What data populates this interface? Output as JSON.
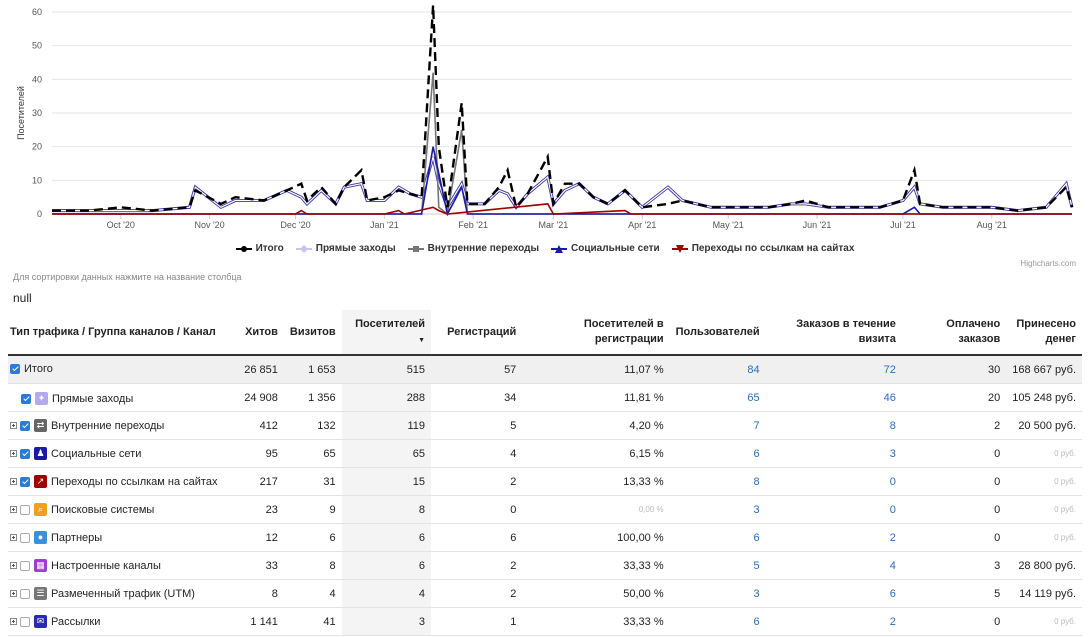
{
  "chart_data": {
    "type": "line",
    "ylabel": "Посетителей",
    "ylim": [
      0,
      60
    ],
    "yticks": [
      0,
      10,
      20,
      30,
      40,
      50,
      60
    ],
    "xlim": [
      "2020-09-07",
      "2021-08-29"
    ],
    "xticks": [
      {
        "label": "Oct '20",
        "date": "2020-10-01"
      },
      {
        "label": "Nov '20",
        "date": "2020-11-01"
      },
      {
        "label": "Dec '20",
        "date": "2020-12-01"
      },
      {
        "label": "Jan '21",
        "date": "2021-01-01"
      },
      {
        "label": "Feb '21",
        "date": "2021-02-01"
      },
      {
        "label": "Mar '21",
        "date": "2021-03-01"
      },
      {
        "label": "Apr '21",
        "date": "2021-04-01"
      },
      {
        "label": "May '21",
        "date": "2021-05-01"
      },
      {
        "label": "Jun '21",
        "date": "2021-06-01"
      },
      {
        "label": "Jul '21",
        "date": "2021-07-01"
      },
      {
        "label": "Aug '21",
        "date": "2021-08-01"
      }
    ],
    "series": [
      {
        "name": "Итого",
        "color": "#000000",
        "dash": true,
        "marker": "circle",
        "points": [
          [
            "2020-09-07",
            1
          ],
          [
            "2020-09-20",
            1
          ],
          [
            "2020-10-01",
            2
          ],
          [
            "2020-10-12",
            1
          ],
          [
            "2020-10-25",
            2
          ],
          [
            "2020-10-27",
            7
          ],
          [
            "2020-11-05",
            3
          ],
          [
            "2020-11-10",
            5
          ],
          [
            "2020-11-20",
            4
          ],
          [
            "2020-11-28",
            7
          ],
          [
            "2020-12-03",
            9
          ],
          [
            "2020-12-05",
            4
          ],
          [
            "2020-12-10",
            8
          ],
          [
            "2020-12-15",
            3
          ],
          [
            "2020-12-18",
            8
          ],
          [
            "2020-12-24",
            13
          ],
          [
            "2020-12-26",
            4
          ],
          [
            "2021-01-01",
            5
          ],
          [
            "2021-01-06",
            7
          ],
          [
            "2021-01-10",
            6
          ],
          [
            "2021-01-14",
            5
          ],
          [
            "2021-01-18",
            62
          ],
          [
            "2021-01-20",
            20
          ],
          [
            "2021-01-23",
            2
          ],
          [
            "2021-01-28",
            33
          ],
          [
            "2021-01-30",
            3
          ],
          [
            "2021-02-05",
            3
          ],
          [
            "2021-02-10",
            8
          ],
          [
            "2021-02-13",
            13
          ],
          [
            "2021-02-16",
            2
          ],
          [
            "2021-02-20",
            6
          ],
          [
            "2021-02-27",
            17
          ],
          [
            "2021-03-01",
            3
          ],
          [
            "2021-03-05",
            9
          ],
          [
            "2021-03-10",
            9
          ],
          [
            "2021-03-15",
            5
          ],
          [
            "2021-03-20",
            3
          ],
          [
            "2021-03-26",
            7
          ],
          [
            "2021-04-01",
            2
          ],
          [
            "2021-04-10",
            3
          ],
          [
            "2021-04-15",
            4
          ],
          [
            "2021-04-25",
            2
          ],
          [
            "2021-05-05",
            2
          ],
          [
            "2021-05-15",
            2
          ],
          [
            "2021-05-23",
            3
          ],
          [
            "2021-05-28",
            4
          ],
          [
            "2021-06-05",
            2
          ],
          [
            "2021-06-15",
            2
          ],
          [
            "2021-06-23",
            2
          ],
          [
            "2021-07-01",
            4
          ],
          [
            "2021-07-05",
            13
          ],
          [
            "2021-07-07",
            3
          ],
          [
            "2021-07-15",
            2
          ],
          [
            "2021-07-25",
            2
          ],
          [
            "2021-08-01",
            2
          ],
          [
            "2021-08-10",
            1
          ],
          [
            "2021-08-20",
            2
          ],
          [
            "2021-08-27",
            8
          ],
          [
            "2021-08-29",
            2
          ]
        ]
      },
      {
        "name": "Прямые заходы",
        "color": "#c8c4ef",
        "dash": false,
        "marker": "diamond",
        "points": [
          [
            "2020-09-07",
            1
          ],
          [
            "2020-09-20",
            1
          ],
          [
            "2020-10-01",
            1
          ],
          [
            "2020-10-12",
            1
          ],
          [
            "2020-10-25",
            2
          ],
          [
            "2020-10-27",
            8
          ],
          [
            "2020-11-05",
            2
          ],
          [
            "2020-11-10",
            4
          ],
          [
            "2020-11-20",
            4
          ],
          [
            "2020-11-28",
            7
          ],
          [
            "2020-12-03",
            5
          ],
          [
            "2020-12-05",
            3
          ],
          [
            "2020-12-10",
            7
          ],
          [
            "2020-12-15",
            3
          ],
          [
            "2020-12-18",
            8
          ],
          [
            "2020-12-24",
            9
          ],
          [
            "2020-12-26",
            4
          ],
          [
            "2021-01-01",
            4
          ],
          [
            "2021-01-06",
            8
          ],
          [
            "2021-01-10",
            6
          ],
          [
            "2021-01-14",
            5
          ],
          [
            "2021-01-18",
            17
          ],
          [
            "2021-01-20",
            9
          ],
          [
            "2021-01-23",
            2
          ],
          [
            "2021-01-28",
            9
          ],
          [
            "2021-01-30",
            3
          ],
          [
            "2021-02-05",
            3
          ],
          [
            "2021-02-10",
            7
          ],
          [
            "2021-02-13",
            6
          ],
          [
            "2021-02-16",
            2
          ],
          [
            "2021-02-20",
            6
          ],
          [
            "2021-02-27",
            11
          ],
          [
            "2021-03-01",
            3
          ],
          [
            "2021-03-05",
            7
          ],
          [
            "2021-03-10",
            9
          ],
          [
            "2021-03-15",
            5
          ],
          [
            "2021-03-20",
            3
          ],
          [
            "2021-03-26",
            7
          ],
          [
            "2021-04-01",
            2
          ],
          [
            "2021-04-10",
            8
          ],
          [
            "2021-04-15",
            4
          ],
          [
            "2021-04-25",
            2
          ],
          [
            "2021-05-05",
            2
          ],
          [
            "2021-05-15",
            2
          ],
          [
            "2021-05-23",
            3
          ],
          [
            "2021-05-28",
            3
          ],
          [
            "2021-06-05",
            2
          ],
          [
            "2021-06-15",
            2
          ],
          [
            "2021-06-23",
            2
          ],
          [
            "2021-07-01",
            4
          ],
          [
            "2021-07-05",
            8
          ],
          [
            "2021-07-07",
            3
          ],
          [
            "2021-07-15",
            2
          ],
          [
            "2021-07-25",
            2
          ],
          [
            "2021-08-01",
            2
          ],
          [
            "2021-08-10",
            1
          ],
          [
            "2021-08-20",
            2
          ],
          [
            "2021-08-27",
            9
          ],
          [
            "2021-08-29",
            2
          ]
        ]
      },
      {
        "name": "Внутренние переходы",
        "color": "#777777",
        "dash": false,
        "marker": "square",
        "points": [
          [
            "2020-09-07",
            0
          ],
          [
            "2020-12-24",
            0
          ],
          [
            "2021-01-14",
            0
          ],
          [
            "2021-01-18",
            42
          ],
          [
            "2021-01-20",
            2
          ],
          [
            "2021-01-23",
            0
          ],
          [
            "2021-01-28",
            25
          ],
          [
            "2021-01-30",
            0
          ],
          [
            "2021-08-29",
            0
          ]
        ]
      },
      {
        "name": "Социальные сети",
        "color": "#1a1aa8",
        "dash": false,
        "marker": "triangle",
        "points": [
          [
            "2020-09-07",
            0
          ],
          [
            "2021-01-14",
            0
          ],
          [
            "2021-01-18",
            20
          ],
          [
            "2021-01-20",
            12
          ],
          [
            "2021-01-23",
            0
          ],
          [
            "2021-01-28",
            8
          ],
          [
            "2021-01-30",
            0
          ],
          [
            "2021-07-01",
            0
          ],
          [
            "2021-07-05",
            2
          ],
          [
            "2021-07-07",
            0
          ],
          [
            "2021-08-29",
            0
          ]
        ]
      },
      {
        "name": "Переходы по ссылкам на сайтах",
        "color": "#a00000",
        "dash": false,
        "marker": "triangle-down",
        "points": [
          [
            "2020-09-07",
            0
          ],
          [
            "2020-12-01",
            0
          ],
          [
            "2020-12-03",
            1
          ],
          [
            "2020-12-05",
            0
          ],
          [
            "2021-01-01",
            0
          ],
          [
            "2021-01-06",
            1
          ],
          [
            "2021-01-08",
            0
          ],
          [
            "2021-01-18",
            2
          ],
          [
            "2021-01-20",
            1
          ],
          [
            "2021-01-23",
            0
          ],
          [
            "2021-02-27",
            3
          ],
          [
            "2021-03-01",
            0
          ],
          [
            "2021-03-26",
            1
          ],
          [
            "2021-03-28",
            0
          ],
          [
            "2021-08-29",
            0
          ]
        ]
      }
    ],
    "credit": "Highcharts.com"
  },
  "hint": "Для сортировки данных нажмите на название столбца",
  "null_text": "null",
  "table": {
    "headers": [
      "Тип трафика / Группа каналов / Канал",
      "Хитов",
      "Визитов",
      "Посетителей",
      "Регистраций",
      "Посетителей в регистрации",
      "Пользователей",
      "Заказов в течение визита",
      "Оплачено заказов",
      "Принесено денег"
    ],
    "sort_arrow": "▼",
    "rows": [
      {
        "name": "Итого",
        "expand": false,
        "checked": true,
        "icon": "",
        "icon_color": "",
        "hits": "26 851",
        "visits": "1 653",
        "visitors": "515",
        "regs": "57",
        "conv": "11,07 %",
        "users": "84",
        "orders": "72",
        "paid": "30",
        "money": "168 667 руб."
      },
      {
        "name": "Прямые заходы",
        "expand": false,
        "checked": true,
        "icon": "✦",
        "icon_color": "#b5a9ee",
        "hits": "24 908",
        "visits": "1 356",
        "visitors": "288",
        "regs": "34",
        "conv": "11,81 %",
        "users": "65",
        "orders": "46",
        "paid": "20",
        "money": "105 248 руб."
      },
      {
        "name": "Внутренние переходы",
        "expand": true,
        "checked": true,
        "icon": "⇄",
        "icon_color": "#666666",
        "hits": "412",
        "visits": "132",
        "visitors": "119",
        "regs": "5",
        "conv": "4,20 %",
        "users": "7",
        "orders": "8",
        "paid": "2",
        "money": "20 500 руб."
      },
      {
        "name": "Социальные сети",
        "expand": true,
        "checked": true,
        "icon": "♟",
        "icon_color": "#1a1aa8",
        "hits": "95",
        "visits": "65",
        "visitors": "65",
        "regs": "4",
        "conv": "6,15 %",
        "users": "6",
        "orders": "3",
        "paid": "0",
        "money": "0 руб."
      },
      {
        "name": "Переходы по ссылкам на сайтах",
        "expand": true,
        "checked": true,
        "icon": "↗",
        "icon_color": "#a00000",
        "hits": "217",
        "visits": "31",
        "visitors": "15",
        "regs": "2",
        "conv": "13,33 %",
        "users": "8",
        "orders": "0",
        "paid": "0",
        "money": "0 руб."
      },
      {
        "name": "Поисковые системы",
        "expand": true,
        "checked": false,
        "icon": "⌕",
        "icon_color": "#f0a020",
        "hits": "23",
        "visits": "9",
        "visitors": "8",
        "regs": "0",
        "conv": "0,00 %",
        "users": "3",
        "orders": "0",
        "paid": "0",
        "money": "0 руб."
      },
      {
        "name": "Партнеры",
        "expand": true,
        "checked": false,
        "icon": "●",
        "icon_color": "#3a8fe0",
        "hits": "12",
        "visits": "6",
        "visitors": "6",
        "regs": "6",
        "conv": "100,00 %",
        "users": "6",
        "orders": "2",
        "paid": "0",
        "money": "0 руб."
      },
      {
        "name": "Настроенные каналы",
        "expand": true,
        "checked": false,
        "icon": "▦",
        "icon_color": "#9b3fd1",
        "hits": "33",
        "visits": "8",
        "visitors": "6",
        "regs": "2",
        "conv": "33,33 %",
        "users": "5",
        "orders": "4",
        "paid": "3",
        "money": "28 800 руб."
      },
      {
        "name": "Размеченный трафик (UTM)",
        "expand": true,
        "checked": false,
        "icon": "☰",
        "icon_color": "#777777",
        "hits": "8",
        "visits": "4",
        "visitors": "4",
        "regs": "2",
        "conv": "50,00 %",
        "users": "3",
        "orders": "6",
        "paid": "5",
        "money": "14 119 руб."
      },
      {
        "name": "Рассылки",
        "expand": true,
        "checked": false,
        "icon": "✉",
        "icon_color": "#2a2ab8",
        "hits": "1 141",
        "visits": "41",
        "visitors": "3",
        "regs": "1",
        "conv": "33,33 %",
        "users": "6",
        "orders": "2",
        "paid": "0",
        "money": "0 руб."
      }
    ]
  }
}
